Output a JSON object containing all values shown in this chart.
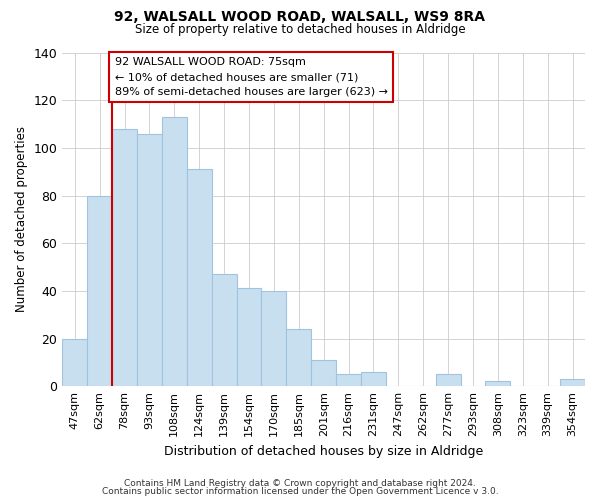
{
  "title": "92, WALSALL WOOD ROAD, WALSALL, WS9 8RA",
  "subtitle": "Size of property relative to detached houses in Aldridge",
  "xlabel": "Distribution of detached houses by size in Aldridge",
  "ylabel": "Number of detached properties",
  "bar_labels": [
    "47sqm",
    "62sqm",
    "78sqm",
    "93sqm",
    "108sqm",
    "124sqm",
    "139sqm",
    "154sqm",
    "170sqm",
    "185sqm",
    "201sqm",
    "216sqm",
    "231sqm",
    "247sqm",
    "262sqm",
    "277sqm",
    "293sqm",
    "308sqm",
    "323sqm",
    "339sqm",
    "354sqm"
  ],
  "bar_values": [
    20,
    80,
    108,
    106,
    113,
    91,
    47,
    41,
    40,
    24,
    11,
    5,
    6,
    0,
    0,
    5,
    0,
    2,
    0,
    0,
    3
  ],
  "bar_color": "#c8dff0",
  "bar_edge_color": "#a0c4e0",
  "vline_color": "#cc0000",
  "annotation_text": "92 WALSALL WOOD ROAD: 75sqm\n← 10% of detached houses are smaller (71)\n89% of semi-detached houses are larger (623) →",
  "annotation_box_color": "#ffffff",
  "annotation_box_edge": "#cc0000",
  "ylim": [
    0,
    140
  ],
  "yticks": [
    0,
    20,
    40,
    60,
    80,
    100,
    120,
    140
  ],
  "footer1": "Contains HM Land Registry data © Crown copyright and database right 2024.",
  "footer2": "Contains public sector information licensed under the Open Government Licence v 3.0.",
  "grid_color": "#cccccc",
  "background_color": "#ffffff",
  "title_fontsize": 10,
  "subtitle_fontsize": 9
}
